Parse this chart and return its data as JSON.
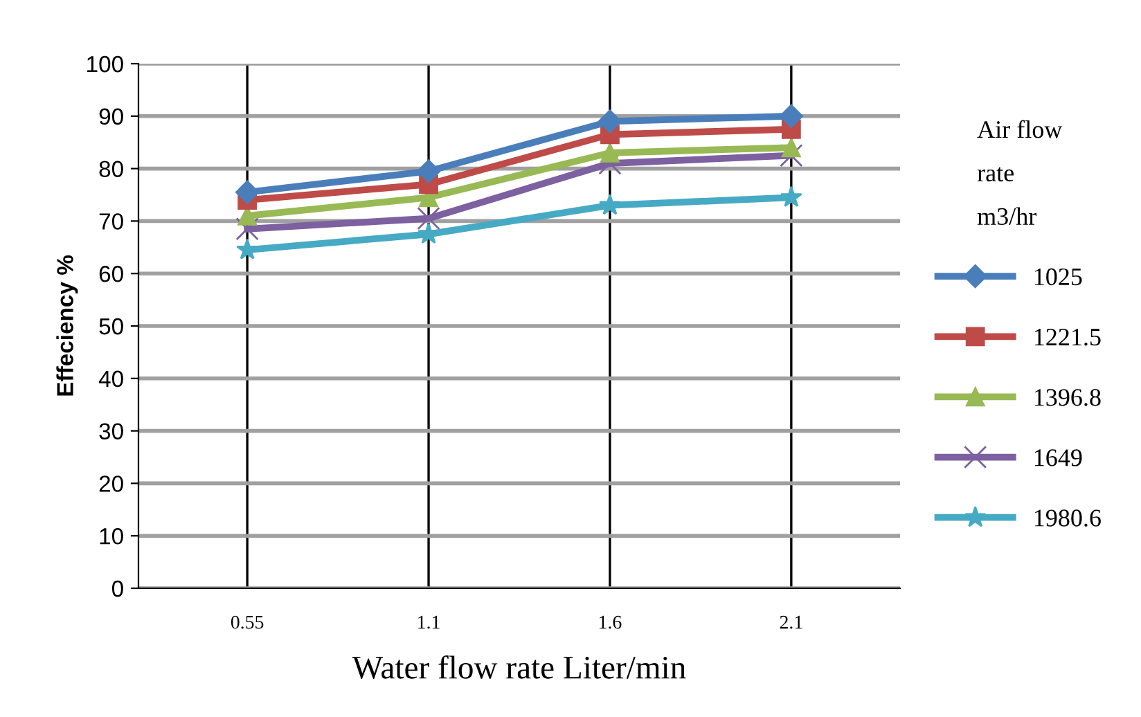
{
  "chart_data": {
    "type": "line",
    "xlabel": "Water flow rate Liter/min",
    "ylabel": "Effeciency %",
    "legend_title": "Air flow\nrate\nm3/hr",
    "categories": [
      "0.55",
      "1.1",
      "1.6",
      "2.1"
    ],
    "series": [
      {
        "name": "1025",
        "color": "#4a7ebb",
        "marker": "diamond",
        "values": [
          75.5,
          79.5,
          89,
          90
        ]
      },
      {
        "name": "1221.5",
        "color": "#be4b48",
        "marker": "square",
        "values": [
          74,
          77,
          86.5,
          87.5
        ]
      },
      {
        "name": "1396.8",
        "color": "#98b954",
        "marker": "triangle",
        "values": [
          71,
          74.5,
          83,
          84
        ]
      },
      {
        "name": "1649",
        "color": "#7d60a0",
        "marker": "cross",
        "values": [
          68.5,
          70.5,
          81,
          82.5
        ]
      },
      {
        "name": "1980.6",
        "color": "#46aac5",
        "marker": "star",
        "values": [
          64.5,
          67.5,
          73,
          74.5
        ]
      }
    ],
    "ylim": [
      0,
      100
    ],
    "yticks": [
      0,
      10,
      20,
      30,
      40,
      50,
      60,
      70,
      80,
      90,
      100
    ],
    "grid": true,
    "legend": "right"
  }
}
